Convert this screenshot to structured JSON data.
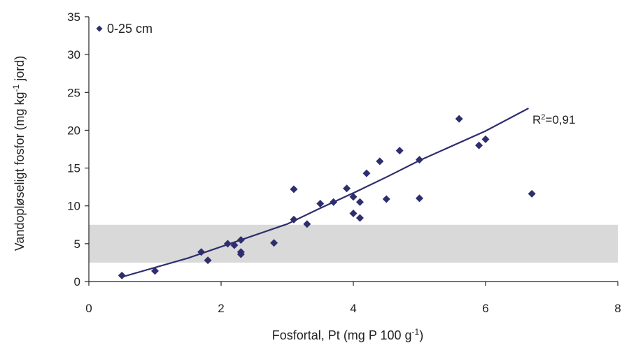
{
  "chart_data": {
    "type": "scatter",
    "xlabel": "Fosfortal, Pt (mg P 100 g",
    "xlabel_sup": "-1",
    "xlabel_end": ")",
    "ylabel": "Vandopløseligt fosfor (mg kg",
    "ylabel_sup": "-1",
    "ylabel_end": " jord)",
    "xlim": [
      0,
      8
    ],
    "ylim": [
      0,
      35
    ],
    "x_ticks": [
      0,
      2,
      4,
      6,
      8
    ],
    "y_ticks": [
      0,
      5,
      10,
      15,
      20,
      25,
      30,
      35
    ],
    "grid": false,
    "legend_position": "top-left",
    "colors": {
      "points": "#2e2e6e",
      "trend": "#2e2e6e",
      "band": "#d9d9d9"
    },
    "band": {
      "y_from": 2.5,
      "y_to": 7.5,
      "x_from": 0,
      "x_to": 8
    },
    "series": [
      {
        "name": "0-25 cm",
        "marker": "diamond",
        "points": [
          [
            0.5,
            0.8
          ],
          [
            1.0,
            1.4
          ],
          [
            1.7,
            3.9
          ],
          [
            1.8,
            2.8
          ],
          [
            2.1,
            5.0
          ],
          [
            2.2,
            4.8
          ],
          [
            2.3,
            5.5
          ],
          [
            2.3,
            3.9
          ],
          [
            2.3,
            3.6
          ],
          [
            2.8,
            5.1
          ],
          [
            3.1,
            8.2
          ],
          [
            3.1,
            12.2
          ],
          [
            3.3,
            7.6
          ],
          [
            3.5,
            10.3
          ],
          [
            3.7,
            10.5
          ],
          [
            3.9,
            12.3
          ],
          [
            4.0,
            11.2
          ],
          [
            4.0,
            9.0
          ],
          [
            4.1,
            10.5
          ],
          [
            4.1,
            8.4
          ],
          [
            4.2,
            14.3
          ],
          [
            4.4,
            15.9
          ],
          [
            4.5,
            10.9
          ],
          [
            4.7,
            17.3
          ],
          [
            5.0,
            16.1
          ],
          [
            5.0,
            11.0
          ],
          [
            5.6,
            21.5
          ],
          [
            5.9,
            18.0
          ],
          [
            6.0,
            18.8
          ],
          [
            6.7,
            11.6
          ]
        ]
      }
    ],
    "trendline": {
      "points": [
        [
          0.5,
          0.6
        ],
        [
          1.5,
          3.1
        ],
        [
          2.5,
          6.1
        ],
        [
          3.0,
          7.6
        ],
        [
          3.5,
          9.7
        ],
        [
          4.0,
          11.7
        ],
        [
          4.5,
          13.8
        ],
        [
          5.0,
          16.0
        ],
        [
          6.0,
          19.9
        ],
        [
          6.65,
          22.9
        ]
      ],
      "r2_prefix": "R",
      "r2_sup": "2",
      "r2_suffix": "=0,91"
    }
  }
}
